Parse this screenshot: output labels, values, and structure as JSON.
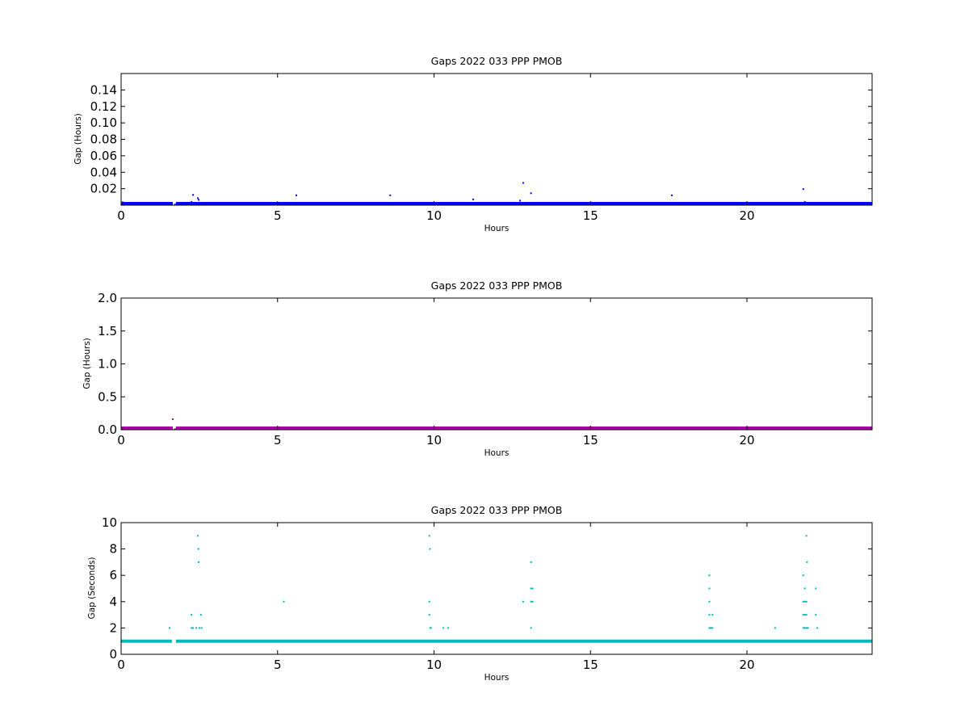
{
  "chart_data": [
    {
      "type": "scatter",
      "title": "Gaps 2022 033 PPP  PMOB",
      "xlabel": "Hours",
      "ylabel": "Gap (Hours)",
      "xlim": [
        0,
        24
      ],
      "ylim": [
        0,
        0.16
      ],
      "xticks": [
        0,
        5,
        10,
        15,
        20
      ],
      "xtick_labels": [
        "0",
        "5",
        "10",
        "15",
        "20"
      ],
      "yticks": [
        0.02,
        0.04,
        0.06,
        0.08,
        0.1,
        0.12,
        0.14
      ],
      "ytick_labels": [
        "0.02",
        "0.04",
        "0.06",
        "0.08",
        "0.10",
        "0.12",
        "0.14"
      ],
      "color": "#0000ff",
      "baseline": {
        "y": 0.0003,
        "x_start": 0,
        "x_end": 24,
        "gaps": [
          [
            1.65,
            1.75
          ]
        ]
      },
      "points": [
        {
          "x": 0.05,
          "y": 0.0035
        },
        {
          "x": 1.72,
          "y": 0.0008
        },
        {
          "x": 2.25,
          "y": 0.004
        },
        {
          "x": 2.3,
          "y": 0.0125
        },
        {
          "x": 2.45,
          "y": 0.0085
        },
        {
          "x": 2.48,
          "y": 0.0065
        },
        {
          "x": 2.5,
          "y": 0.003
        },
        {
          "x": 5.6,
          "y": 0.012
        },
        {
          "x": 8.6,
          "y": 0.012
        },
        {
          "x": 9.9,
          "y": 0.002
        },
        {
          "x": 11.25,
          "y": 0.007
        },
        {
          "x": 12.75,
          "y": 0.0055
        },
        {
          "x": 12.85,
          "y": 0.027
        },
        {
          "x": 13.1,
          "y": 0.0145
        },
        {
          "x": 13.15,
          "y": 0.003
        },
        {
          "x": 17.6,
          "y": 0.012
        },
        {
          "x": 21.8,
          "y": 0.0195
        },
        {
          "x": 21.85,
          "y": 0.004
        },
        {
          "x": 21.9,
          "y": 0.003
        }
      ]
    },
    {
      "type": "scatter",
      "title": "Gaps 2022 033 PPP  PMOB",
      "xlabel": "Hours",
      "ylabel": "Gap (Hours)",
      "xlim": [
        0,
        24
      ],
      "ylim": [
        0,
        2.0
      ],
      "xticks": [
        0,
        5,
        10,
        15,
        20
      ],
      "xtick_labels": [
        "0",
        "5",
        "10",
        "15",
        "20"
      ],
      "yticks": [
        0.0,
        0.5,
        1.0,
        1.5,
        2.0
      ],
      "ytick_labels": [
        "0.0",
        "0.5",
        "1.0",
        "1.5",
        "2.0"
      ],
      "color": "#aa00aa",
      "baseline": {
        "y": 0.005,
        "x_start": 0,
        "x_end": 24,
        "gaps": [
          [
            1.65,
            1.75
          ]
        ]
      },
      "points": [
        {
          "x": 1.65,
          "y": 0.16
        },
        {
          "x": 1.72,
          "y": 0.01
        },
        {
          "x": 12.85,
          "y": 0.025
        }
      ]
    },
    {
      "type": "scatter",
      "title": "Gaps 2022 033 PPP  PMOB",
      "xlabel": "Hours",
      "ylabel": "Gap (Seconds)",
      "xlim": [
        0,
        24
      ],
      "ylim": [
        0,
        10
      ],
      "xticks": [
        0,
        5,
        10,
        15,
        20
      ],
      "xtick_labels": [
        "0",
        "5",
        "10",
        "15",
        "20"
      ],
      "yticks": [
        0,
        2,
        4,
        6,
        8,
        10
      ],
      "ytick_labels": [
        "0",
        "2",
        "4",
        "6",
        "8",
        "10"
      ],
      "color": "#00bbbb",
      "baseline": {
        "y": 1,
        "x_start": 0,
        "x_end": 24,
        "gaps": [
          [
            1.62,
            1.75
          ]
        ]
      },
      "points": [
        {
          "x": 1.55,
          "y": 2
        },
        {
          "x": 2.25,
          "y": 3
        },
        {
          "x": 2.25,
          "y": 2
        },
        {
          "x": 2.3,
          "y": 2
        },
        {
          "x": 2.4,
          "y": 2
        },
        {
          "x": 2.45,
          "y": 9
        },
        {
          "x": 2.47,
          "y": 8
        },
        {
          "x": 2.48,
          "y": 7
        },
        {
          "x": 2.5,
          "y": 2
        },
        {
          "x": 2.55,
          "y": 3
        },
        {
          "x": 2.57,
          "y": 2
        },
        {
          "x": 5.2,
          "y": 4
        },
        {
          "x": 9.85,
          "y": 9
        },
        {
          "x": 9.87,
          "y": 8
        },
        {
          "x": 9.85,
          "y": 4
        },
        {
          "x": 9.85,
          "y": 3
        },
        {
          "x": 9.88,
          "y": 2
        },
        {
          "x": 9.9,
          "y": 2
        },
        {
          "x": 10.3,
          "y": 2
        },
        {
          "x": 10.45,
          "y": 2
        },
        {
          "x": 12.85,
          "y": 4
        },
        {
          "x": 13.1,
          "y": 7
        },
        {
          "x": 13.1,
          "y": 5
        },
        {
          "x": 13.15,
          "y": 5
        },
        {
          "x": 13.1,
          "y": 4
        },
        {
          "x": 13.15,
          "y": 4
        },
        {
          "x": 13.1,
          "y": 2
        },
        {
          "x": 18.8,
          "y": 6
        },
        {
          "x": 18.8,
          "y": 5
        },
        {
          "x": 18.8,
          "y": 4
        },
        {
          "x": 18.8,
          "y": 3
        },
        {
          "x": 18.9,
          "y": 3
        },
        {
          "x": 18.8,
          "y": 2
        },
        {
          "x": 18.85,
          "y": 2
        },
        {
          "x": 18.9,
          "y": 2
        },
        {
          "x": 20.9,
          "y": 2
        },
        {
          "x": 21.8,
          "y": 6
        },
        {
          "x": 21.85,
          "y": 5
        },
        {
          "x": 21.8,
          "y": 4
        },
        {
          "x": 21.85,
          "y": 4
        },
        {
          "x": 21.9,
          "y": 4
        },
        {
          "x": 21.8,
          "y": 3
        },
        {
          "x": 21.85,
          "y": 3
        },
        {
          "x": 21.9,
          "y": 3
        },
        {
          "x": 21.8,
          "y": 2
        },
        {
          "x": 21.85,
          "y": 2
        },
        {
          "x": 21.9,
          "y": 2
        },
        {
          "x": 21.95,
          "y": 2
        },
        {
          "x": 21.9,
          "y": 9
        },
        {
          "x": 21.92,
          "y": 7
        },
        {
          "x": 22.2,
          "y": 5
        },
        {
          "x": 22.2,
          "y": 3
        },
        {
          "x": 22.25,
          "y": 2
        }
      ]
    }
  ]
}
